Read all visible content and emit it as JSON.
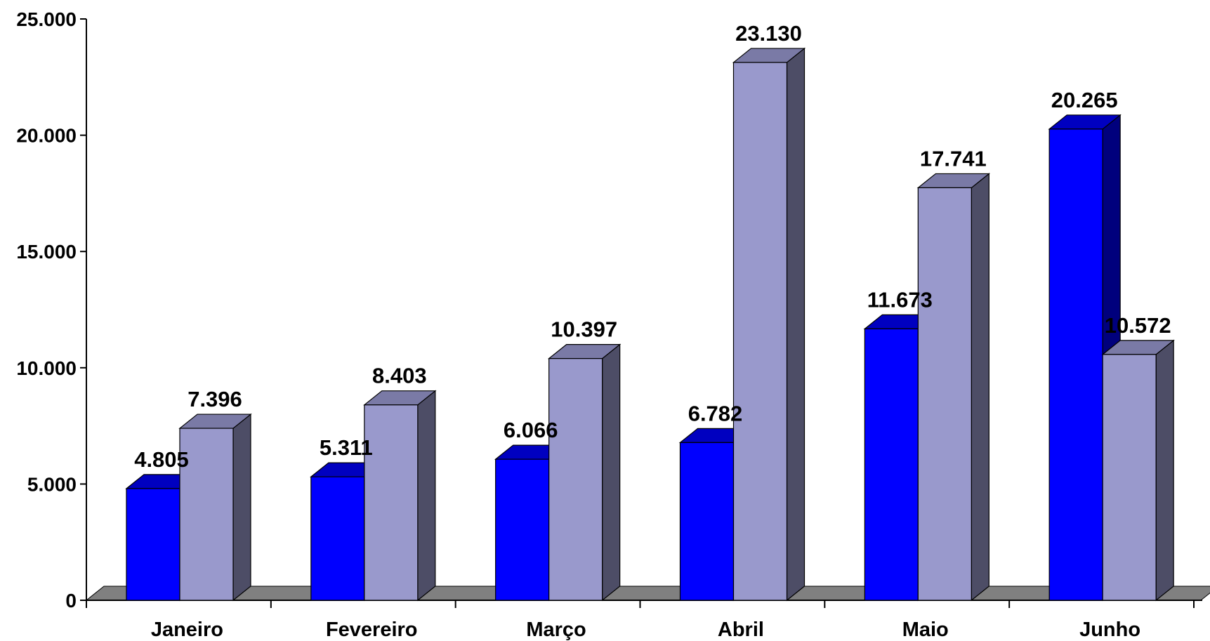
{
  "chart_data": {
    "type": "bar",
    "title": "",
    "xlabel": "",
    "ylabel": "",
    "categories": [
      "Janeiro",
      "Fevereiro",
      "Março",
      "Abril",
      "Maio",
      "Junho"
    ],
    "series": [
      {
        "values": [
          4805,
          5311,
          6066,
          6782,
          11673,
          20265
        ],
        "labels": [
          "4.805",
          "5.311",
          "6.066",
          "6.782",
          "11.673",
          "20.265"
        ]
      },
      {
        "values": [
          7396,
          8403,
          10397,
          23130,
          17741,
          10572
        ],
        "labels": [
          "7.396",
          "8.403",
          "10.397",
          "23.130",
          "17.741",
          "10.572"
        ]
      }
    ],
    "ylim": [
      0,
      25000
    ],
    "yticks": [
      0,
      5000,
      10000,
      15000,
      20000,
      25000
    ],
    "ytick_labels": [
      "0",
      "5.000",
      "10.000",
      "15.000",
      "20.000",
      "25.000"
    ],
    "grid": false,
    "legend": "none",
    "style": "3d-column",
    "colors": {
      "series": [
        {
          "front": "#0000ff",
          "top": "#0000c0",
          "side": "#00007d"
        },
        {
          "front": "#9999cc",
          "top": "#7a7aa6",
          "side": "#4d4d66"
        }
      ],
      "floor": "#808080",
      "axis": "#000000"
    }
  }
}
